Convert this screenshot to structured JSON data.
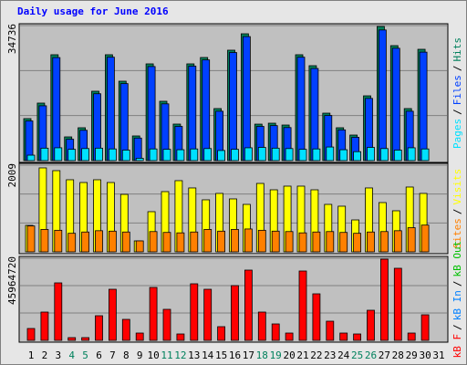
{
  "title": "Daily usage for June 2016",
  "legend_separator": "/",
  "categories": [
    "1",
    "2",
    "3",
    "4",
    "5",
    "6",
    "7",
    "8",
    "9",
    "10",
    "11",
    "12",
    "13",
    "14",
    "15",
    "16",
    "17",
    "18",
    "19",
    "20",
    "21",
    "22",
    "23",
    "24",
    "25",
    "26",
    "27",
    "28",
    "29",
    "30",
    "31"
  ],
  "category_colors": [
    "#000000",
    "#000000",
    "#000000",
    "#00805c",
    "#00805c",
    "#000000",
    "#000000",
    "#000000",
    "#000000",
    "#000000",
    "#00805c",
    "#00805c",
    "#000000",
    "#000000",
    "#000000",
    "#000000",
    "#000000",
    "#00805c",
    "#00805c",
    "#000000",
    "#000000",
    "#000000",
    "#000000",
    "#000000",
    "#00805c",
    "#00805c",
    "#000000",
    "#000000",
    "#000000",
    "#000000",
    "#000000"
  ],
  "chart_data": [
    {
      "type": "bar",
      "ylim": [
        0,
        34736
      ],
      "yticks": [
        34736
      ],
      "grid_divisions": 3,
      "series": [
        {
          "name": "Pages",
          "color": "#00e0ff",
          "values": [
            1400,
            3200,
            3300,
            2900,
            3100,
            3200,
            3000,
            2700,
            600,
            3000,
            2900,
            2800,
            3000,
            3100,
            2600,
            2900,
            3300,
            3400,
            3200,
            3100,
            2900,
            3000,
            3500,
            2800,
            2300,
            3400,
            3100,
            2700,
            3300,
            3000,
            null
          ]
        },
        {
          "name": "Files",
          "color": "#0040ff",
          "values": [
            10200,
            14100,
            26500,
            5500,
            7800,
            17200,
            26600,
            19800,
            5800,
            24200,
            14600,
            8800,
            24300,
            25900,
            12700,
            27800,
            31900,
            8800,
            9000,
            8500,
            26600,
            23700,
            11600,
            7900,
            6000,
            16000,
            33600,
            28900,
            12700,
            27900,
            null
          ]
        },
        {
          "name": "Hits",
          "color": "#00805c",
          "values": [
            10800,
            14790,
            27230,
            6100,
            8450,
            17840,
            27230,
            20420,
            6340,
            24880,
            15260,
            9390,
            24880,
            26520,
            13380,
            28400,
            32620,
            9380,
            9620,
            9150,
            27230,
            24410,
            12200,
            8450,
            6570,
            16660,
            34500,
            29570,
            13380,
            28630,
            null
          ]
        }
      ]
    },
    {
      "type": "bar",
      "ylim": [
        0,
        2009
      ],
      "yticks": [
        2009
      ],
      "grid_divisions": 3,
      "series": [
        {
          "name": "Sites",
          "color": "#ff8000",
          "values": [
            600,
            520,
            500,
            430,
            460,
            490,
            480,
            460,
            254,
            470,
            450,
            440,
            460,
            520,
            480,
            520,
            530,
            500,
            480,
            470,
            440,
            460,
            470,
            450,
            430,
            460,
            470,
            490,
            560,
            620,
            null
          ]
        },
        {
          "name": "Visits",
          "color": "#ffff00",
          "values": [
            613,
            1946,
            1882,
            1671,
            1607,
            1671,
            1607,
            1332,
            254,
            931,
            1396,
            1650,
            1481,
            1206,
            1354,
            1227,
            1100,
            1586,
            1438,
            1523,
            1523,
            1438,
            1100,
            1058,
            740,
            1481,
            1142,
            952,
            1502,
            1354,
            null
          ]
        }
      ]
    },
    {
      "type": "bar",
      "ylim": [
        0,
        45964720
      ],
      "yticks": [
        45964720
      ],
      "grid_divisions": 3,
      "series": [
        {
          "name": "kB F",
          "color": "#ff0000",
          "values": [
            6639347,
            15832289,
            32175297,
            1532157,
            1532157,
            13789413,
            28600264,
            11746537,
            4085752,
            29621702,
            17364446,
            3575033,
            31664578,
            28600264,
            7660785,
            30643140,
            39325363,
            15832289,
            9192942,
            4085752,
            38814644,
            26046669,
            10725099,
            4085752,
            3575033,
            16853727,
            45453991,
            40346801,
            4085752,
            14300132,
            null
          ]
        },
        {
          "name": "kB In",
          "color": "#0080ff",
          "values": [
            null,
            null,
            null,
            null,
            null,
            null,
            null,
            null,
            null,
            null,
            null,
            null,
            null,
            null,
            null,
            null,
            null,
            null,
            null,
            null,
            null,
            null,
            null,
            null,
            null,
            null,
            null,
            null,
            null,
            null,
            null
          ]
        },
        {
          "name": "kB Out",
          "color": "#00c000",
          "values": [
            null,
            null,
            null,
            null,
            null,
            null,
            null,
            null,
            null,
            null,
            null,
            null,
            null,
            null,
            null,
            null,
            null,
            null,
            null,
            null,
            null,
            null,
            null,
            null,
            null,
            null,
            null,
            null,
            null,
            null,
            null
          ]
        }
      ]
    }
  ]
}
